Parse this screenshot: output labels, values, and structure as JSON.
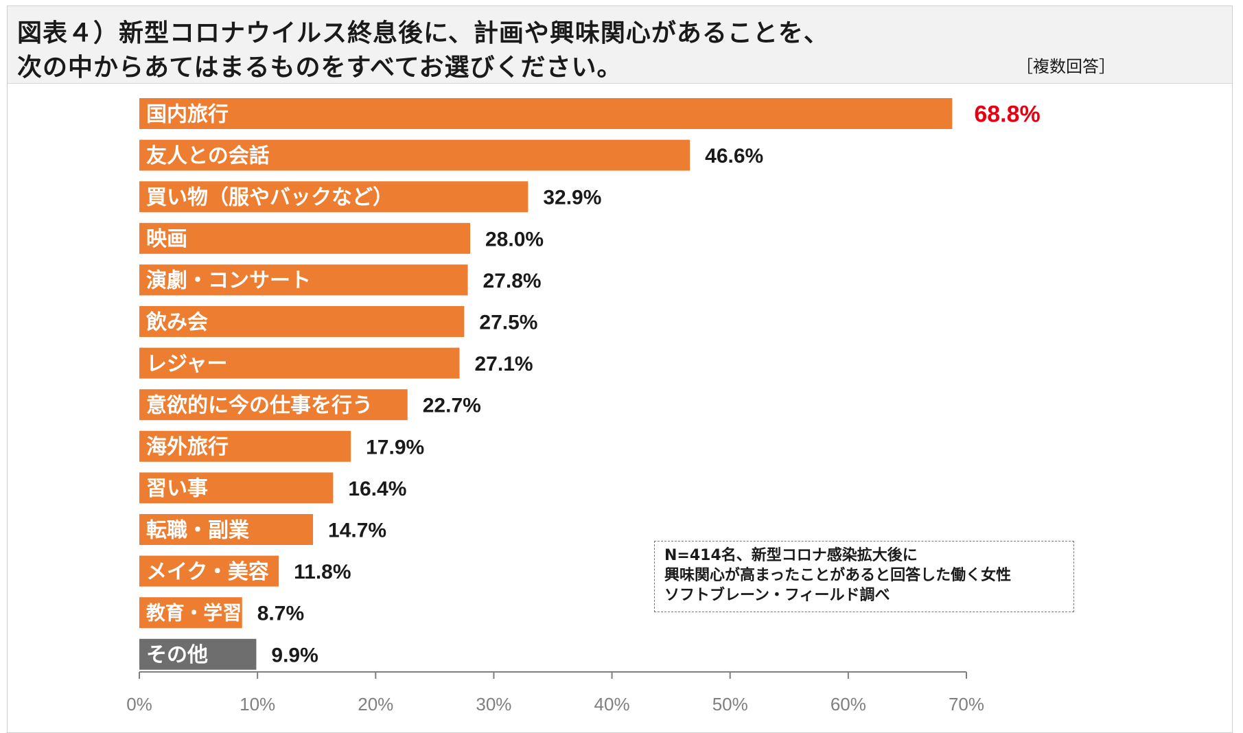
{
  "header": {
    "title_line1": "図表４）新型コロナウイルス終息後に、計画や興味関心があることを、",
    "title_line2": "次の中からあてはまるものをすべてお選びください。",
    "subtitle": "［複数回答］"
  },
  "note": {
    "line1": "N=414名、新型コロナ感染拡大後に",
    "line2": "興味関心が高まったことがあると回答した働く女性",
    "line3": "ソフトブレーン・フィールド調べ"
  },
  "colors": {
    "bar": "#ED7D31",
    "bar_other": "#6E6E6E",
    "highlight_label": "#E60012",
    "axis": "#7F7F7F",
    "tick_label": "#7F7F7F",
    "value_label": "#1a1a1a",
    "category_label": "#ffffff"
  },
  "chart_data": {
    "type": "bar",
    "orientation": "horizontal",
    "categories": [
      "国内旅行",
      "友人との会話",
      "買い物（服やバックなど）",
      "映画",
      "演劇・コンサート",
      "飲み会",
      "レジャー",
      "意欲的に今の仕事を行う",
      "海外旅行",
      "習い事",
      "転職・副業",
      "メイク・美容",
      "教育・学習",
      "その他"
    ],
    "values": [
      68.8,
      46.6,
      32.9,
      28.0,
      27.8,
      27.5,
      27.1,
      22.7,
      17.9,
      16.4,
      14.7,
      11.8,
      8.7,
      9.9
    ],
    "value_labels": [
      "68.8%",
      "46.6%",
      "32.9%",
      "28.0%",
      "27.8%",
      "27.5%",
      "27.1%",
      "22.7%",
      "17.9%",
      "16.4%",
      "14.7%",
      "11.8%",
      "8.7%",
      "9.9%"
    ],
    "highlight_index": 0,
    "other_index": 13,
    "xlim": [
      0,
      70
    ],
    "xticks": [
      0,
      10,
      20,
      30,
      40,
      50,
      60,
      70
    ],
    "xtick_labels": [
      "0%",
      "10%",
      "20%",
      "30%",
      "40%",
      "50%",
      "60%",
      "70%"
    ],
    "grid": false,
    "legend": "none"
  }
}
